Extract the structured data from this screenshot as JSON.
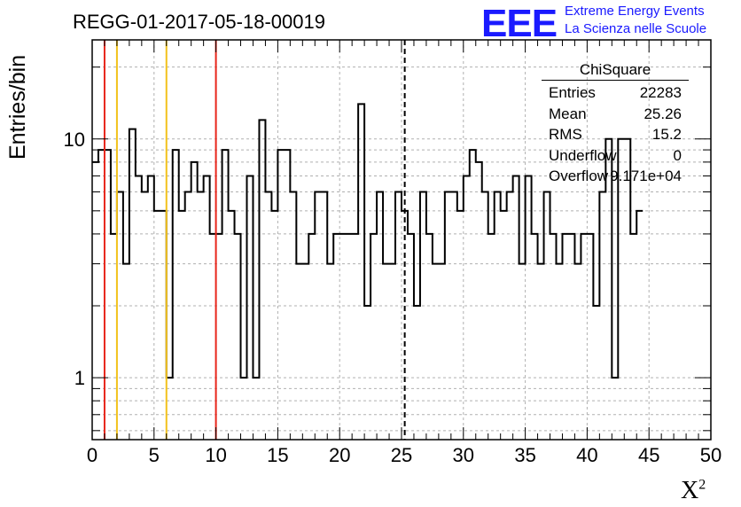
{
  "header": {
    "title": "REGG-01-2017-05-18-00019"
  },
  "logo": {
    "mark": "EEE",
    "line1": "Extreme Energy Events",
    "line2": "La Scienza nelle Scuole",
    "color": "#1a1aff"
  },
  "stats_box": {
    "title": "ChiSquare",
    "rows": [
      {
        "label": "Entries",
        "value": "22283"
      },
      {
        "label": "Mean",
        "value": "25.26"
      },
      {
        "label": "RMS",
        "value": "15.2"
      },
      {
        "label": "Underflow",
        "value": "0"
      },
      {
        "label": "Overflow",
        "value": "9.171e+04"
      }
    ]
  },
  "chart_data": {
    "type": "histogram",
    "title": "REGG-01-2017-05-18-00019",
    "xlabel": "X",
    "xlabel_superscript": "2",
    "ylabel": "Entries/bin",
    "xlim": [
      0,
      50
    ],
    "ylim": [
      0.55,
      26
    ],
    "yscale": "log",
    "grid": true,
    "bin_width": 0.5,
    "x_ticks": [
      "0",
      "5",
      "10",
      "15",
      "20",
      "25",
      "30",
      "35",
      "40",
      "45",
      "50"
    ],
    "x_tick_values": [
      0,
      5,
      10,
      15,
      20,
      25,
      30,
      35,
      40,
      45,
      50
    ],
    "y_ticks": [
      "1",
      "10"
    ],
    "y_tick_values": [
      1,
      10
    ],
    "bin_values": [
      8,
      9,
      9,
      4,
      6,
      3,
      11,
      7,
      6,
      7,
      5,
      5,
      1,
      9,
      5,
      6,
      8,
      6,
      7,
      4,
      4,
      9,
      5,
      4,
      1,
      7,
      1,
      12,
      6,
      5,
      9,
      9,
      6,
      3,
      3,
      4,
      6,
      6,
      3,
      4,
      4,
      4,
      4,
      14,
      2,
      4,
      6,
      3,
      3,
      6,
      5,
      4,
      2,
      6,
      4,
      3,
      3,
      6,
      6,
      5,
      7,
      9,
      8,
      6,
      4,
      6,
      5,
      6,
      7,
      3,
      7,
      4,
      3,
      6,
      4,
      3,
      4,
      4,
      3,
      4,
      4,
      2,
      6,
      10,
      1,
      10,
      10,
      4,
      5
    ],
    "vertical_lines": [
      {
        "x": 1,
        "color": "#e8261b",
        "style": "solid"
      },
      {
        "x": 2,
        "color": "#f2c21b",
        "style": "solid"
      },
      {
        "x": 6,
        "color": "#f2c21b",
        "style": "solid"
      },
      {
        "x": 10,
        "color": "#e8261b",
        "style": "solid"
      },
      {
        "x": 25.26,
        "color": "#000000",
        "style": "dashed"
      }
    ]
  }
}
